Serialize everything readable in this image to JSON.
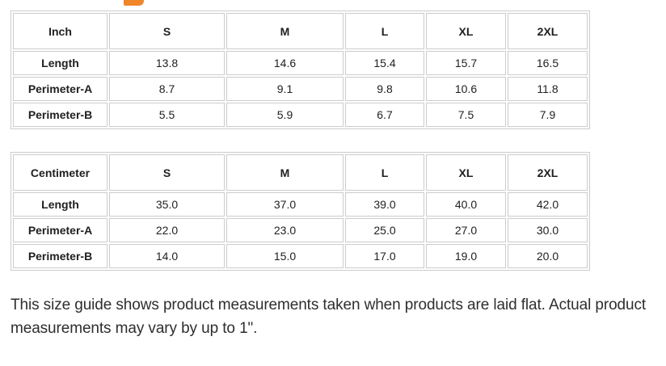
{
  "page": {
    "accent_color": "#f0862a",
    "table_border_color": "#cccccc",
    "text_color": "#1f1f1f"
  },
  "size_guide": {
    "tables": [
      {
        "unit": "Inch",
        "sizes": [
          "S",
          "M",
          "L",
          "XL",
          "2XL"
        ],
        "rows": [
          {
            "label": "Length",
            "values": [
              "13.8",
              "14.6",
              "15.4",
              "15.7",
              "16.5"
            ]
          },
          {
            "label": "Perimeter-A",
            "values": [
              "8.7",
              "9.1",
              "9.8",
              "10.6",
              "11.8"
            ]
          },
          {
            "label": "Perimeter-B",
            "values": [
              "5.5",
              "5.9",
              "6.7",
              "7.5",
              "7.9"
            ]
          }
        ]
      },
      {
        "unit": "Centimeter",
        "sizes": [
          "S",
          "M",
          "L",
          "XL",
          "2XL"
        ],
        "rows": [
          {
            "label": "Length",
            "values": [
              "35.0",
              "37.0",
              "39.0",
              "40.0",
              "42.0"
            ]
          },
          {
            "label": "Perimeter-A",
            "values": [
              "22.0",
              "23.0",
              "25.0",
              "27.0",
              "30.0"
            ]
          },
          {
            "label": "Perimeter-B",
            "values": [
              "14.0",
              "15.0",
              "17.0",
              "19.0",
              "20.0"
            ]
          }
        ]
      }
    ],
    "note": "This size guide shows product measurements taken when products are laid flat. Actual product measurements may vary by up to 1\"."
  }
}
